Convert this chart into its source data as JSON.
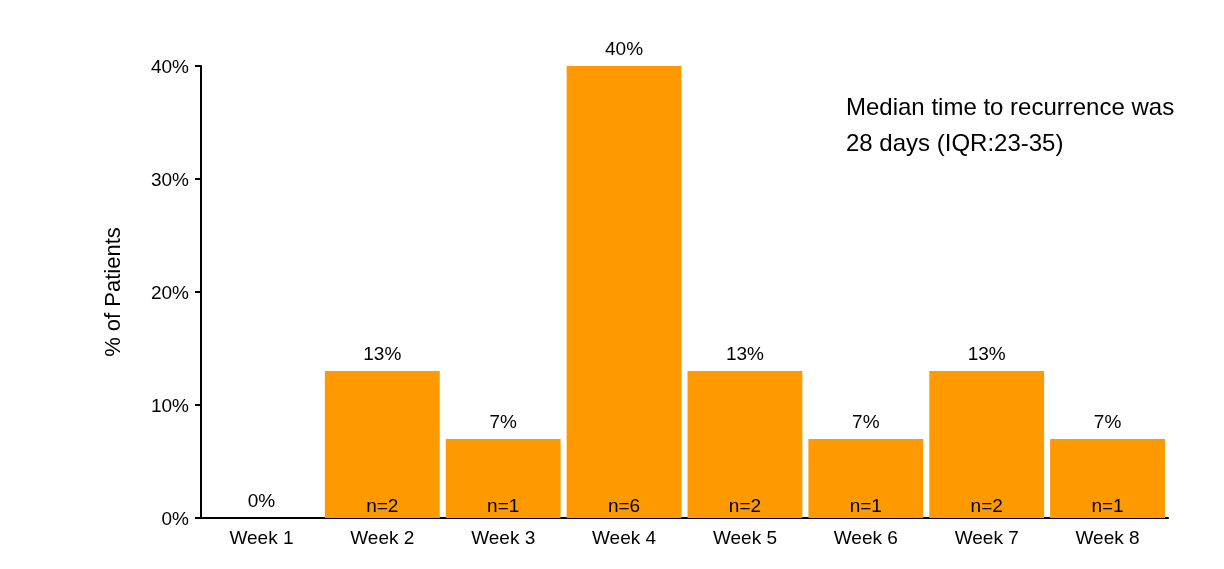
{
  "chart_data": {
    "type": "bar",
    "ylabel": "% of Patients",
    "categories": [
      "Week 1",
      "Week 2",
      "Week 3",
      "Week 4",
      "Week 5",
      "Week 6",
      "Week 7",
      "Week 8"
    ],
    "values": [
      0,
      13,
      7,
      40,
      13,
      7,
      13,
      7
    ],
    "value_labels": [
      "0%",
      "13%",
      "7%",
      "40%",
      "13%",
      "7%",
      "13%",
      "7%"
    ],
    "color": "#ff9900",
    "ylim": [
      0,
      40
    ],
    "yticks": [
      {
        "value": 0,
        "label": "0%"
      },
      {
        "value": 10,
        "label": "10%"
      },
      {
        "value": 20,
        "label": "20%"
      },
      {
        "value": 30,
        "label": "30%"
      },
      {
        "value": 40,
        "label": "40%"
      }
    ],
    "grid": false,
    "annotations": [
      "Median time to recurrence was 28 days (IQR:23-35)",
      {
        "text": "n=2",
        "x": "Week 2",
        "y": 0
      },
      {
        "text": "n=1",
        "x": "Week 3",
        "y": 0
      },
      {
        "text": "n=6",
        "x": "Week 4",
        "y": 0
      },
      {
        "text": "n=2",
        "x": "Week 5",
        "y": 0
      },
      {
        "text": "n=1",
        "x": "Week 6",
        "y": 0
      },
      {
        "text": "n=2",
        "x": "Week 7",
        "y": 0
      },
      {
        "text": "n=1",
        "x": "Week 8",
        "y": 0
      }
    ]
  }
}
